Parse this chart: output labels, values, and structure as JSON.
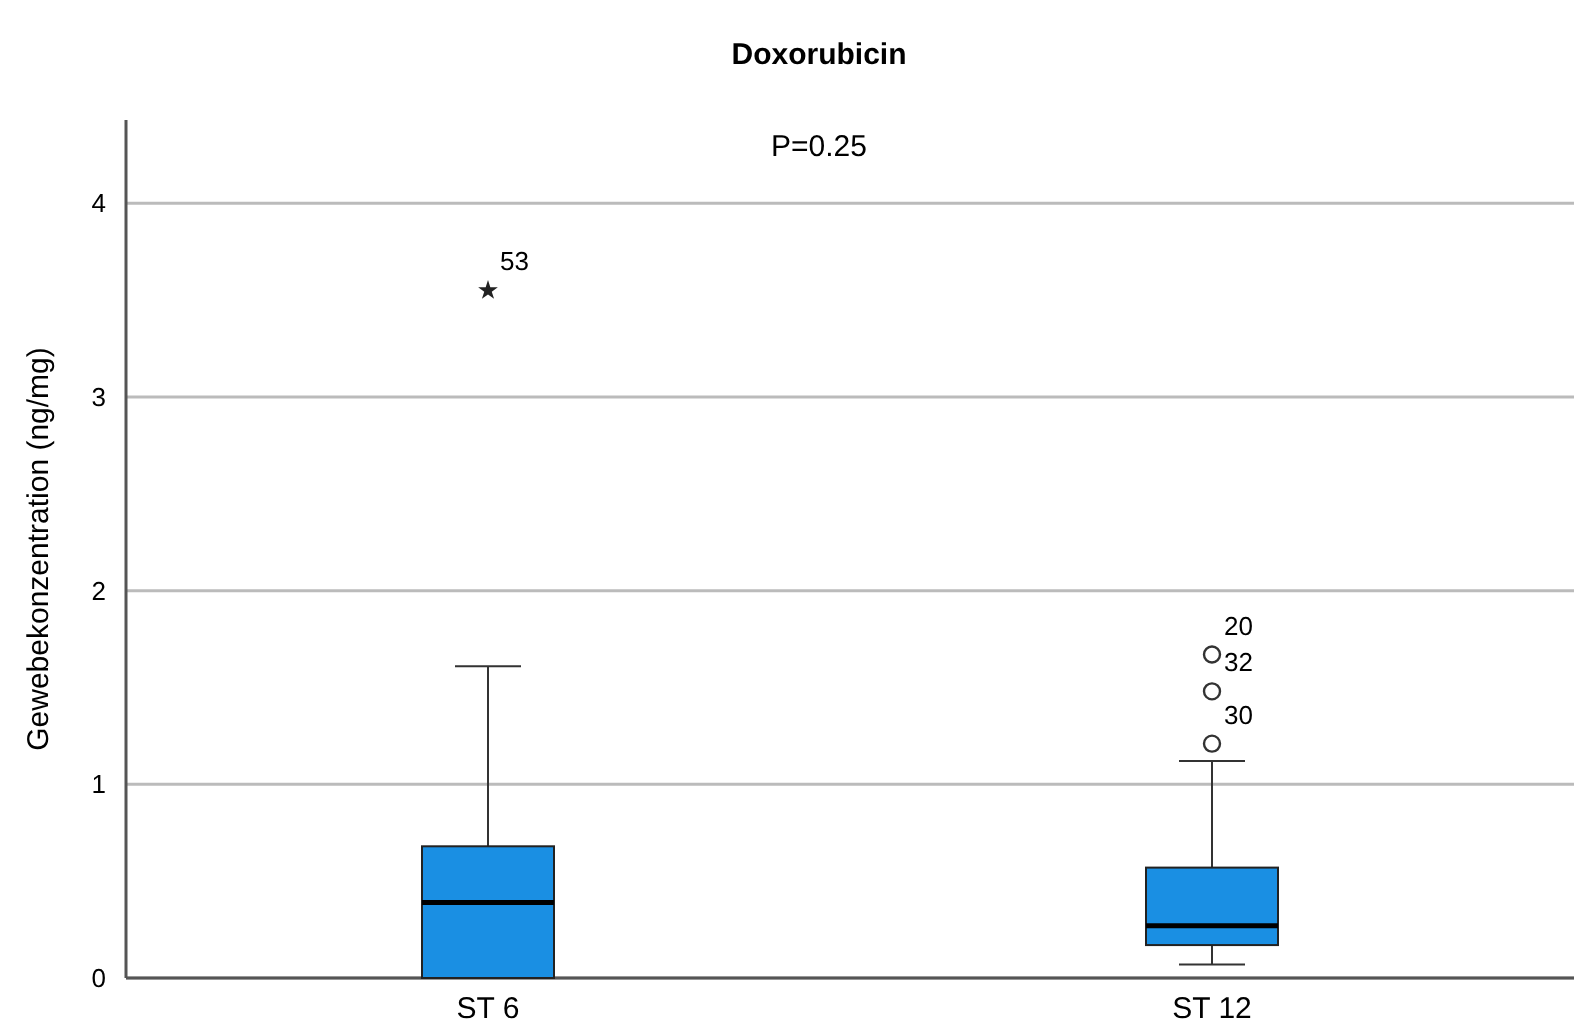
{
  "chart_data": {
    "type": "box",
    "title": "Doxorubicin",
    "ylabel": "Gewebekonzentration (ng/mg)",
    "categories": [
      "ST 6",
      "ST 12"
    ],
    "boxes": [
      {
        "low": 0,
        "q1": 0,
        "median": 0.39,
        "q3": 0.68,
        "high": 1.61,
        "outliers": [
          3.55
        ]
      },
      {
        "low": 0.07,
        "q1": 0.17,
        "median": 0.27,
        "q3": 0.57,
        "high": 1.12,
        "outliers": [
          1.21,
          1.48,
          1.67
        ]
      }
    ],
    "color": "#1a8fe3",
    "ylim": [
      0,
      4.43
    ],
    "yticks": [
      0,
      1,
      2,
      3,
      4
    ],
    "grid": "y",
    "annotations": [
      "P=0.25",
      "53",
      "30",
      "32",
      "20"
    ]
  }
}
